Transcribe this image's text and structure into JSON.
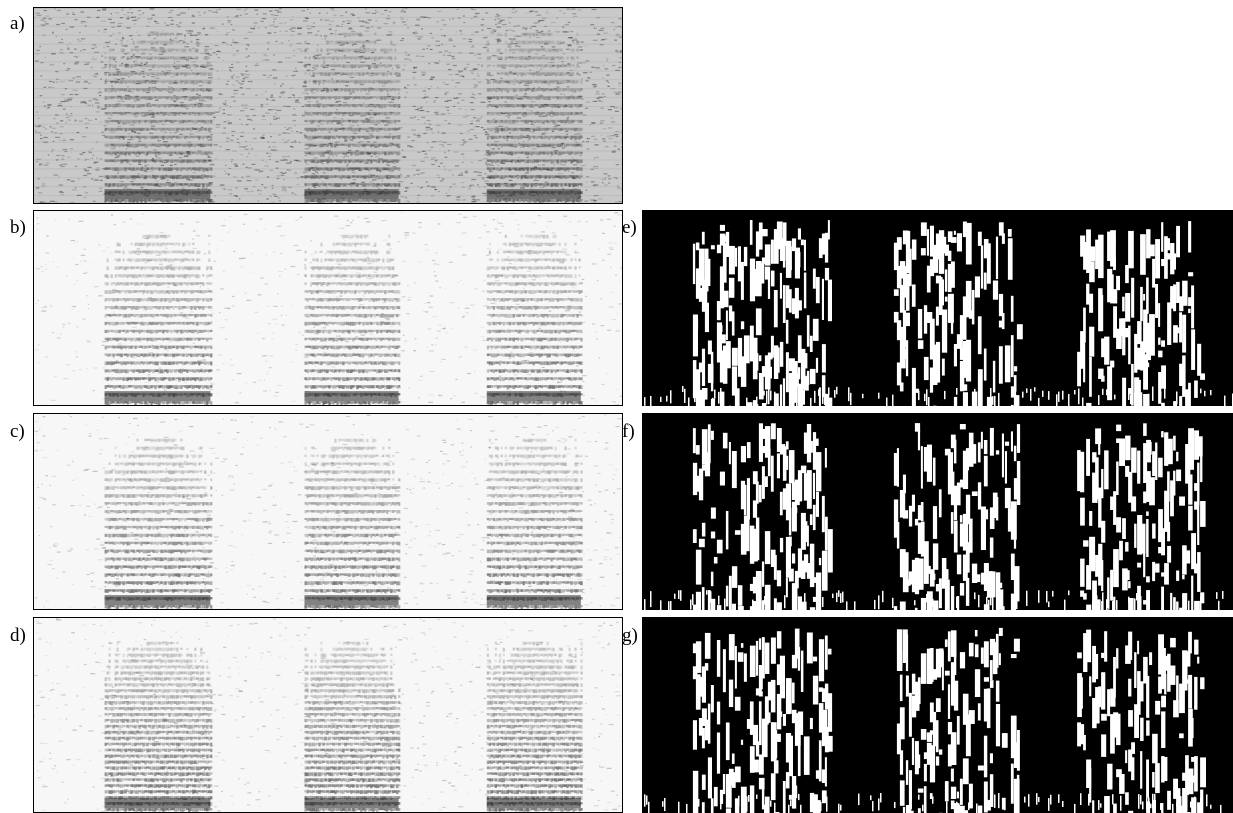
{
  "figure": {
    "panels": [
      {
        "id": "a",
        "label": "a)",
        "kind": "spectrogram",
        "style": "noisy",
        "background": "#c9c9c9",
        "ink": "#2a2a2a"
      },
      {
        "id": "b",
        "label": "b)",
        "kind": "spectrogram",
        "style": "enhanced",
        "background": "#f7f7f7",
        "ink": "#222222"
      },
      {
        "id": "c",
        "label": "c)",
        "kind": "spectrogram",
        "style": "enhanced",
        "background": "#f7f7f7",
        "ink": "#222222"
      },
      {
        "id": "d",
        "label": "d)",
        "kind": "spectrogram",
        "style": "enhanced-harmonic",
        "background": "#f7f7f7",
        "ink": "#1e1e1e"
      },
      {
        "id": "e",
        "label": "e)",
        "kind": "binary-mask",
        "background": "#000000",
        "ink": "#ffffff"
      },
      {
        "id": "f",
        "label": "f)",
        "kind": "binary-mask",
        "background": "#000000",
        "ink": "#ffffff"
      },
      {
        "id": "g",
        "label": "g)",
        "kind": "binary-mask",
        "background": "#000000",
        "ink": "#ffffff"
      }
    ]
  }
}
